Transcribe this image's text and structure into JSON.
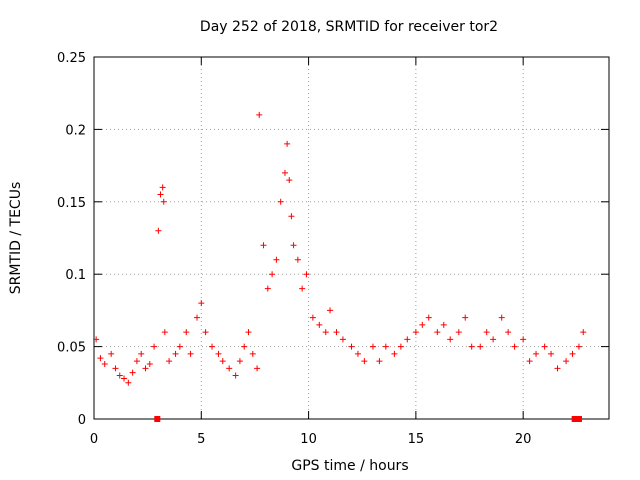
{
  "chart_data": {
    "type": "scatter",
    "title": "Day 252 of 2018, SRMTID for receiver tor2",
    "xlabel": "GPS time / hours",
    "ylabel": "SRMTID / TECUs",
    "xlim": [
      0,
      24
    ],
    "ylim": [
      0,
      0.25
    ],
    "x_ticks": [
      0,
      5,
      10,
      15,
      20
    ],
    "x_tick_labels": [
      "0",
      "5",
      "10",
      "15",
      "20"
    ],
    "y_ticks": [
      0,
      0.05,
      0.1,
      0.15,
      0.2,
      0.25
    ],
    "y_tick_labels": [
      "0",
      "0.05",
      "0.1",
      "0.15",
      "0.2",
      "0.25"
    ],
    "grid": true,
    "marker": "+",
    "series_color": "#ff0000",
    "series": [
      {
        "name": "SRMTID",
        "x": [
          0.1,
          0.3,
          0.5,
          0.8,
          1.0,
          1.2,
          1.4,
          1.6,
          1.8,
          2.0,
          2.2,
          2.4,
          2.6,
          2.8,
          3.0,
          3.1,
          3.2,
          3.25,
          3.3,
          3.5,
          3.8,
          4.0,
          4.3,
          4.5,
          4.8,
          5.0,
          5.2,
          5.5,
          5.8,
          6.0,
          6.3,
          6.6,
          6.8,
          7.0,
          7.2,
          7.4,
          7.6,
          7.7,
          7.9,
          8.1,
          8.3,
          8.5,
          8.7,
          8.9,
          9.0,
          9.1,
          9.2,
          9.3,
          9.5,
          9.7,
          9.9,
          10.2,
          10.5,
          10.8,
          11.0,
          11.3,
          11.6,
          12.0,
          12.3,
          12.6,
          13.0,
          13.3,
          13.6,
          14.0,
          14.3,
          14.6,
          15.0,
          15.3,
          15.6,
          16.0,
          16.3,
          16.6,
          17.0,
          17.3,
          17.6,
          18.0,
          18.3,
          18.6,
          19.0,
          19.3,
          19.6,
          20.0,
          20.3,
          20.6,
          21.0,
          21.3,
          21.6,
          22.0,
          22.3,
          22.6,
          22.8
        ],
        "y": [
          0.055,
          0.042,
          0.038,
          0.045,
          0.035,
          0.03,
          0.028,
          0.025,
          0.032,
          0.04,
          0.045,
          0.035,
          0.038,
          0.05,
          0.13,
          0.155,
          0.16,
          0.15,
          0.06,
          0.04,
          0.045,
          0.05,
          0.06,
          0.045,
          0.07,
          0.08,
          0.06,
          0.05,
          0.045,
          0.04,
          0.035,
          0.03,
          0.04,
          0.05,
          0.06,
          0.045,
          0.035,
          0.21,
          0.12,
          0.09,
          0.1,
          0.11,
          0.15,
          0.17,
          0.19,
          0.165,
          0.14,
          0.12,
          0.11,
          0.09,
          0.1,
          0.07,
          0.065,
          0.06,
          0.075,
          0.06,
          0.055,
          0.05,
          0.045,
          0.04,
          0.05,
          0.04,
          0.05,
          0.045,
          0.05,
          0.055,
          0.06,
          0.065,
          0.07,
          0.06,
          0.065,
          0.055,
          0.06,
          0.07,
          0.05,
          0.05,
          0.06,
          0.055,
          0.07,
          0.06,
          0.05,
          0.055,
          0.04,
          0.045,
          0.05,
          0.045,
          0.035,
          0.04,
          0.045,
          0.05,
          0.06
        ]
      }
    ],
    "missing_data_markers_x": [
      2.95,
      22.4,
      22.6
    ]
  }
}
